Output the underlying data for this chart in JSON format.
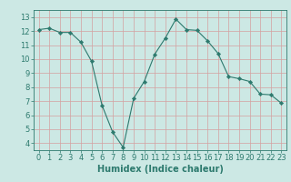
{
  "x": [
    0,
    1,
    2,
    3,
    4,
    5,
    6,
    7,
    8,
    9,
    10,
    11,
    12,
    13,
    14,
    15,
    16,
    17,
    18,
    19,
    20,
    21,
    22,
    23
  ],
  "y": [
    12.1,
    12.2,
    11.9,
    11.9,
    11.2,
    9.85,
    6.7,
    4.8,
    3.7,
    7.2,
    8.4,
    10.35,
    11.5,
    12.85,
    12.1,
    12.05,
    11.3,
    10.4,
    8.75,
    8.6,
    8.4,
    7.5,
    7.45,
    6.85
  ],
  "line_color": "#2d7a6e",
  "marker": "D",
  "marker_size": 2.2,
  "bg_color": "#cce8e4",
  "grid_color": "#d4a0a0",
  "xlabel": "Humidex (Indice chaleur)",
  "xlim": [
    -0.5,
    23.5
  ],
  "ylim": [
    3.5,
    13.5
  ],
  "yticks": [
    4,
    5,
    6,
    7,
    8,
    9,
    10,
    11,
    12,
    13
  ],
  "xticks": [
    0,
    1,
    2,
    3,
    4,
    5,
    6,
    7,
    8,
    9,
    10,
    11,
    12,
    13,
    14,
    15,
    16,
    17,
    18,
    19,
    20,
    21,
    22,
    23
  ],
  "xlabel_fontsize": 7,
  "tick_fontsize": 6,
  "text_color": "#2d7a6e",
  "line_width": 0.8
}
